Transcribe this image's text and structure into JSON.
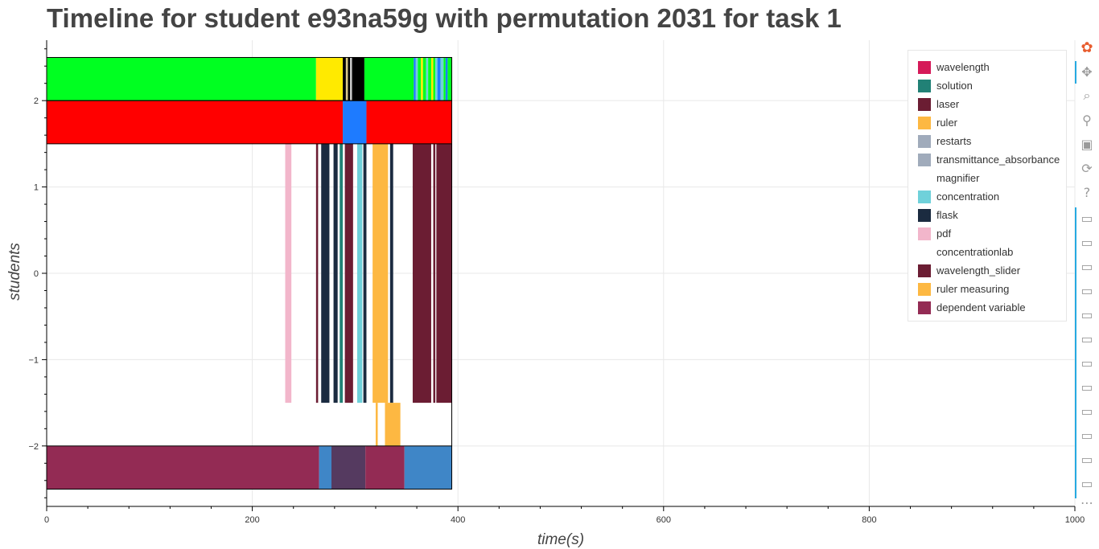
{
  "page": {
    "title": "Timeline for student e93na59g with permutation 2031 for task 1"
  },
  "chart_data": {
    "type": "timeline",
    "title": "Timeline for student e93na59g with permutation 2031 for task 1",
    "xlabel": "time(s)",
    "ylabel": "students",
    "xlim": [
      0,
      1000
    ],
    "ylim": [
      -2.7,
      2.7
    ],
    "x_ticks": [
      0,
      200,
      400,
      600,
      800,
      1000
    ],
    "y_ticks": [
      -2,
      -1,
      0,
      1,
      2
    ],
    "x_tick_labels": [
      "0",
      "200",
      "400",
      "600",
      "800",
      "1000"
    ],
    "y_tick_labels": [
      "−2",
      "−1",
      "0",
      "1",
      "2"
    ],
    "grid": true,
    "legend_position": "top-right",
    "legend": [
      {
        "label": "wavelength",
        "color": "#d51a59"
      },
      {
        "label": "solution",
        "color": "#218176"
      },
      {
        "label": "laser",
        "color": "#6b1d33"
      },
      {
        "label": "ruler",
        "color": "#fdb842"
      },
      {
        "label": "restarts",
        "color": "#a0abbb"
      },
      {
        "label": "transmittance_absorbance",
        "color": "#a0abbb"
      },
      {
        "label": "magnifier",
        "color": "#ffffff"
      },
      {
        "label": "concentration",
        "color": "#6fd1da"
      },
      {
        "label": "flask",
        "color": "#1b2b40"
      },
      {
        "label": "pdf",
        "color": "#f2b6cb"
      },
      {
        "label": "concentrationlab",
        "color": "#ffffff"
      },
      {
        "label": "wavelength_slider",
        "color": "#6b1d33"
      },
      {
        "label": "ruler measuring",
        "color": "#fdb842"
      },
      {
        "label": "dependent variable",
        "color": "#932b54"
      }
    ],
    "rows": [
      {
        "row": "top",
        "y_range": [
          2.0,
          2.5
        ],
        "segments": [
          {
            "start": 0,
            "end": 262,
            "color": "#00ff21"
          },
          {
            "start": 262,
            "end": 288,
            "color": "#ffea00"
          },
          {
            "start": 288,
            "end": 291,
            "color": "#000000"
          },
          {
            "start": 291,
            "end": 293,
            "color": "#d9c98a"
          },
          {
            "start": 293,
            "end": 295,
            "color": "#000000"
          },
          {
            "start": 295,
            "end": 297,
            "color": "#c8c8c8"
          },
          {
            "start": 297,
            "end": 309,
            "color": "#000000"
          },
          {
            "start": 309,
            "end": 357,
            "color": "#00ff21"
          },
          {
            "start": 357,
            "end": 359,
            "color": "#1e7bff"
          },
          {
            "start": 359,
            "end": 361,
            "color": "#6fd1da"
          },
          {
            "start": 361,
            "end": 364,
            "color": "#00ff21"
          },
          {
            "start": 364,
            "end": 366,
            "color": "#ffea00"
          },
          {
            "start": 366,
            "end": 369,
            "color": "#00ff21"
          },
          {
            "start": 369,
            "end": 371,
            "color": "#6fd1da"
          },
          {
            "start": 371,
            "end": 374,
            "color": "#00ff21"
          },
          {
            "start": 374,
            "end": 376,
            "color": "#ffea00"
          },
          {
            "start": 376,
            "end": 378,
            "color": "#00ff21"
          },
          {
            "start": 378,
            "end": 380,
            "color": "#6fd1da"
          },
          {
            "start": 380,
            "end": 383,
            "color": "#1e7bff"
          },
          {
            "start": 383,
            "end": 386,
            "color": "#6fd1da"
          },
          {
            "start": 386,
            "end": 388,
            "color": "#00ff21"
          },
          {
            "start": 388,
            "end": 390,
            "color": "#1e7bff"
          },
          {
            "start": 390,
            "end": 394,
            "color": "#00ff21"
          }
        ]
      },
      {
        "row": "second",
        "y_range": [
          1.5,
          2.0
        ],
        "segments": [
          {
            "start": 0,
            "end": 288,
            "color": "#ff0000"
          },
          {
            "start": 288,
            "end": 311,
            "color": "#1e7bff"
          },
          {
            "start": 311,
            "end": 394,
            "color": "#ff0000"
          }
        ]
      },
      {
        "row": "events",
        "y_range": [
          -1.5,
          1.5
        ],
        "segments": [
          {
            "start": 232,
            "end": 238,
            "color": "#f2b6cb"
          },
          {
            "start": 262,
            "end": 264,
            "color": "#6b1d33"
          },
          {
            "start": 267,
            "end": 275,
            "color": "#1b2b40"
          },
          {
            "start": 279,
            "end": 283,
            "color": "#1b2b40"
          },
          {
            "start": 285,
            "end": 288,
            "color": "#218176"
          },
          {
            "start": 290,
            "end": 298,
            "color": "#6b1d33"
          },
          {
            "start": 302,
            "end": 307,
            "color": "#6fd1da"
          },
          {
            "start": 308,
            "end": 311,
            "color": "#1b2b40"
          },
          {
            "start": 317,
            "end": 332,
            "color": "#fdb842"
          },
          {
            "start": 334,
            "end": 337,
            "color": "#1b2b40"
          },
          {
            "start": 356,
            "end": 374,
            "color": "#6b1d33"
          },
          {
            "start": 376,
            "end": 378,
            "color": "#6b1d33"
          },
          {
            "start": 379,
            "end": 394,
            "color": "#6b1d33"
          }
        ]
      },
      {
        "row": "ruler measuring",
        "y_range": [
          -2.0,
          -1.5
        ],
        "segments": [
          {
            "start": 320,
            "end": 322,
            "color": "#fdb842"
          },
          {
            "start": 329,
            "end": 344,
            "color": "#fdb842"
          }
        ]
      },
      {
        "row": "bottom",
        "y_range": [
          -2.5,
          -2.0
        ],
        "segments": [
          {
            "start": 0,
            "end": 265,
            "color": "#932b54"
          },
          {
            "start": 265,
            "end": 277,
            "color": "#3f86c7"
          },
          {
            "start": 277,
            "end": 310,
            "color": "#553a60"
          },
          {
            "start": 310,
            "end": 348,
            "color": "#932b54"
          },
          {
            "start": 348,
            "end": 394,
            "color": "#3f86c7"
          }
        ]
      }
    ]
  },
  "toolbar": {
    "tools": [
      {
        "name": "bokeh-logo-icon",
        "glyph": "✿",
        "interactable": true
      },
      {
        "name": "pan-icon",
        "glyph": "✥",
        "interactable": true
      },
      {
        "name": "box-zoom-icon",
        "glyph": "⌕",
        "interactable": true
      },
      {
        "name": "wheel-zoom-icon",
        "glyph": "⚲",
        "interactable": true
      },
      {
        "name": "save-icon",
        "glyph": "▣",
        "interactable": true
      },
      {
        "name": "reset-icon",
        "glyph": "⟳",
        "interactable": true
      },
      {
        "name": "help-icon",
        "glyph": "?",
        "interactable": true
      },
      {
        "name": "hover-icon",
        "glyph": "▭",
        "interactable": true
      },
      {
        "name": "hover-icon",
        "glyph": "▭",
        "interactable": true
      },
      {
        "name": "hover-icon",
        "glyph": "▭",
        "interactable": true
      },
      {
        "name": "hover-icon",
        "glyph": "▭",
        "interactable": true
      },
      {
        "name": "hover-icon",
        "glyph": "▭",
        "interactable": true
      },
      {
        "name": "hover-icon",
        "glyph": "▭",
        "interactable": true
      },
      {
        "name": "hover-icon",
        "glyph": "▭",
        "interactable": true
      },
      {
        "name": "hover-icon",
        "glyph": "▭",
        "interactable": true
      },
      {
        "name": "hover-icon",
        "glyph": "▭",
        "interactable": true
      },
      {
        "name": "hover-icon",
        "glyph": "▭",
        "interactable": true
      },
      {
        "name": "hover-icon",
        "glyph": "▭",
        "interactable": true
      },
      {
        "name": "hover-icon",
        "glyph": "▭",
        "interactable": true
      },
      {
        "name": "more-icon",
        "glyph": "⋯",
        "interactable": true
      }
    ]
  }
}
